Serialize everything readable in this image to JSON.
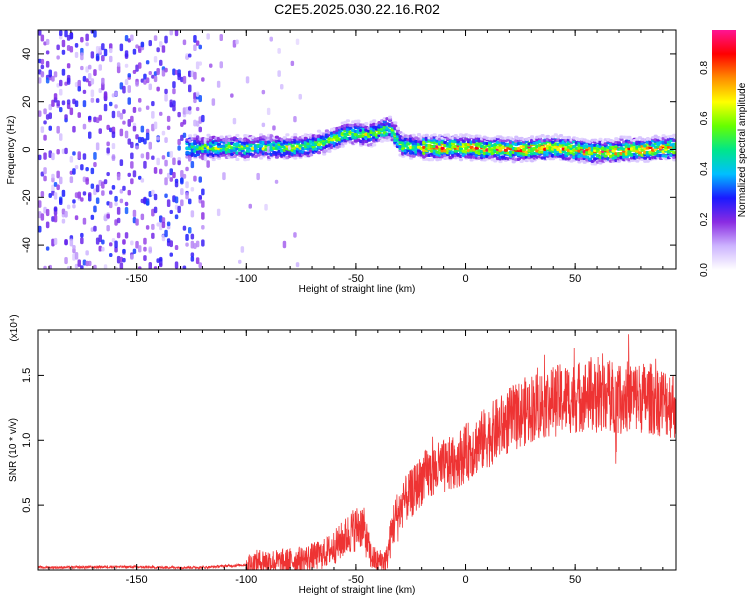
{
  "title": "C2E5.2025.030.22.16.R02",
  "chart_data": [
    {
      "type": "heatmap",
      "xlabel": "Height of straight line (km)",
      "ylabel": "Frequency (Hz)",
      "xlim": [
        -195,
        96
      ],
      "ylim": [
        -50,
        50
      ],
      "xticks": [
        -150,
        -100,
        -50,
        0,
        50
      ],
      "yticks": [
        -40,
        -20,
        0,
        20,
        40
      ],
      "colorbar": {
        "label": "Normalized spectral amplitude",
        "range": [
          0.0,
          0.95
        ],
        "ticks": [
          0.0,
          0.2,
          0.4,
          0.6,
          0.8
        ],
        "tick_labels": [
          "0.0",
          "0.2",
          "0.4",
          "0.6",
          "0.8"
        ],
        "colors": [
          "#ffffff",
          "#cdb4ff",
          "#8a2be2",
          "#1a1aff",
          "#00bfff",
          "#00e68a",
          "#66ff00",
          "#ffff00",
          "#ff8c00",
          "#ff0000",
          "#ff1493"
        ]
      },
      "ridge": {
        "x": [
          -120,
          -100,
          -80,
          -70,
          -60,
          -55,
          -50,
          -45,
          -40,
          -35,
          -30,
          -20,
          0,
          20,
          40,
          50,
          60,
          70,
          80,
          95
        ],
        "y": [
          1,
          1,
          1,
          2,
          5,
          7,
          7,
          6,
          8,
          9,
          2,
          1,
          1,
          0,
          1,
          0,
          -1,
          0,
          0,
          1
        ]
      },
      "noise_region_x": [
        -195,
        -120
      ]
    },
    {
      "type": "line",
      "xlabel": "Height of straight line (km)",
      "ylabel": "SNR (10 * v/v)",
      "y_multiplier": "(x10⁴)",
      "xlim": [
        -195,
        96
      ],
      "ylim": [
        0,
        1.85
      ],
      "xticks": [
        -150,
        -100,
        -50,
        0,
        50
      ],
      "yticks": [
        0.5,
        1.0,
        1.5
      ],
      "ytick_labels": [
        "0.5",
        "1.0",
        "1.5"
      ],
      "color": "#ee3333",
      "series": [
        {
          "x": [
            -195,
            -180,
            -160,
            -140,
            -120,
            -110,
            -100,
            -92,
            -85,
            -75,
            -65,
            -58,
            -52,
            -47,
            -43,
            -40,
            -36,
            -33,
            -30,
            -27,
            -24,
            -20,
            -16,
            -12,
            -8,
            -4,
            0,
            4,
            8,
            12,
            16,
            20,
            25,
            30,
            35,
            40,
            45,
            50,
            55,
            60,
            65,
            70,
            75,
            80,
            85,
            90,
            95
          ],
          "y": [
            0.02,
            0.02,
            0.025,
            0.02,
            0.02,
            0.03,
            0.04,
            0.07,
            0.06,
            0.08,
            0.12,
            0.2,
            0.3,
            0.35,
            0.1,
            0.06,
            0.08,
            0.35,
            0.45,
            0.55,
            0.6,
            0.7,
            0.75,
            0.78,
            0.8,
            0.85,
            0.9,
            0.95,
            1.0,
            1.05,
            1.1,
            1.15,
            1.2,
            1.25,
            1.28,
            1.3,
            1.32,
            1.33,
            1.35,
            1.33,
            1.35,
            1.32,
            1.34,
            1.33,
            1.32,
            1.3,
            1.28
          ]
        }
      ]
    }
  ]
}
